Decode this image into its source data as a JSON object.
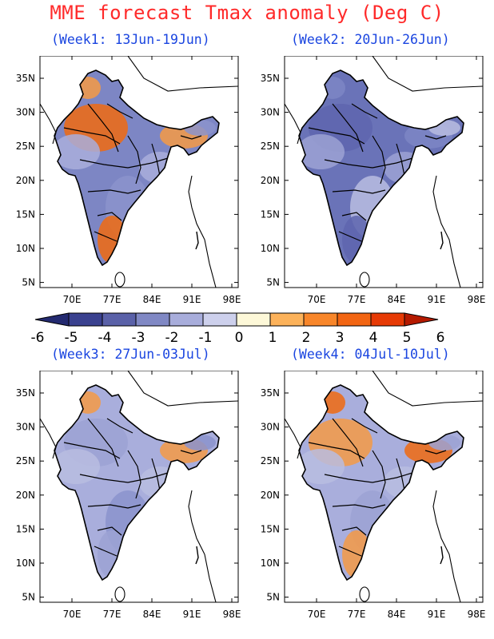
{
  "title": "MME forecast Tmax anomaly (Deg C)",
  "panels": [
    {
      "label": "(Week1: 13Jun-19Jun)",
      "palette": [
        "#7d86c4",
        "#f06a10",
        "#a9aedc",
        "#f59a45",
        "#8b93cc"
      ],
      "id": "w1"
    },
    {
      "label": "(Week2: 20Jun-26Jun)",
      "palette": [
        "#6a73b8",
        "#5e65ae",
        "#9ca2d4",
        "#7d86c4",
        "#b9bde0"
      ],
      "id": "w2"
    },
    {
      "label": "(Week3: 27Jun-03Jul)",
      "palette": [
        "#a9aedc",
        "#9ca2d4",
        "#b9bde0",
        "#f59a45",
        "#8b93cc"
      ],
      "id": "w3"
    },
    {
      "label": "(Week4: 04Jul-10Jul)",
      "palette": [
        "#a9aedc",
        "#f59a45",
        "#b9bde0",
        "#f06a10",
        "#9ca2d4"
      ],
      "id": "w4"
    }
  ],
  "axes": {
    "lon_ticks": [
      "70E",
      "77E",
      "84E",
      "91E",
      "98E"
    ],
    "lat_ticks": [
      "35N",
      "30N",
      "25N",
      "20N",
      "15N",
      "10N",
      "5N"
    ]
  },
  "colorbar": {
    "labels": [
      "-6",
      "-5",
      "-4",
      "-3",
      "-2",
      "-1",
      "0",
      "1",
      "2",
      "3",
      "4",
      "5",
      "6"
    ],
    "colors": [
      "#232a70",
      "#3a418f",
      "#5a61a8",
      "#8088c4",
      "#a8addb",
      "#cdd0ec",
      "#fdf8d8",
      "#fcb25a",
      "#f8862a",
      "#f26512",
      "#e63a05",
      "#b51a00"
    ]
  }
}
